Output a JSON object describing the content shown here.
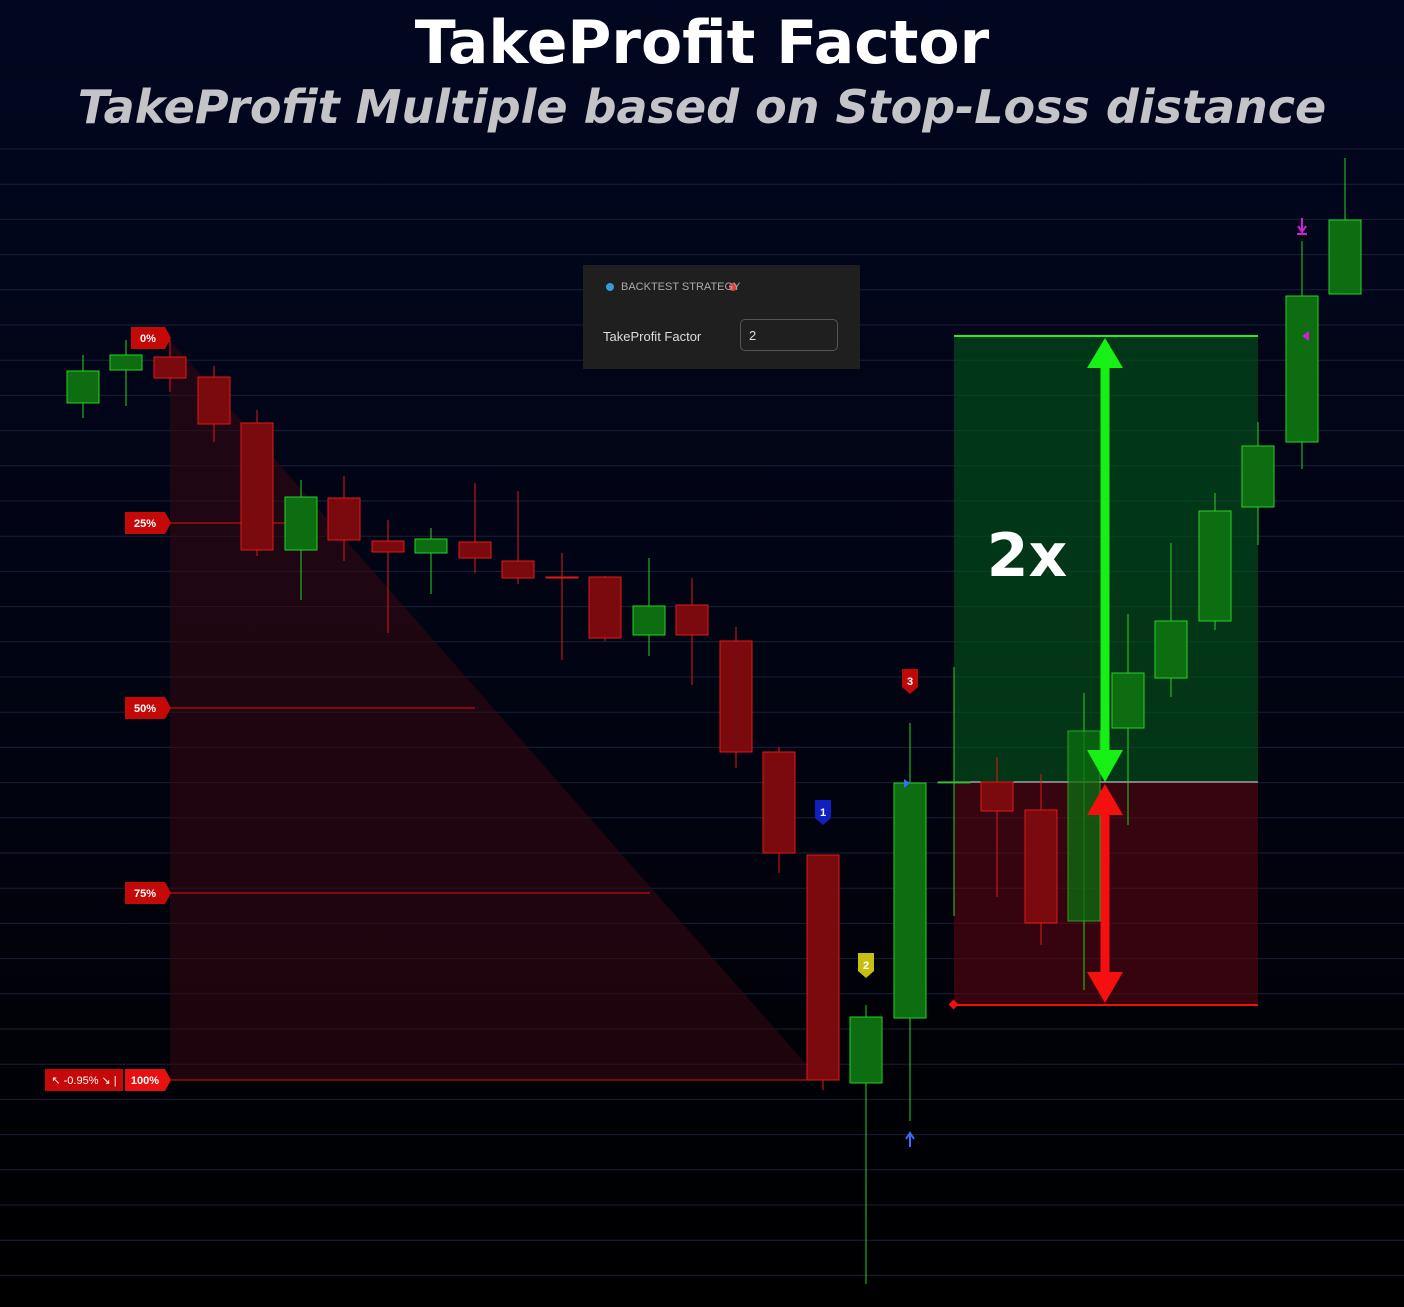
{
  "header": {
    "title": "TakeProfit Factor",
    "subtitle": "TakeProfit Multiple based on Stop-Loss distance"
  },
  "panel": {
    "heading": "BACKTEST STRATEGY",
    "field_label": "TakeProfit Factor",
    "field_value": "2"
  },
  "fib": {
    "levels": [
      "0%",
      "25%",
      "50%",
      "75%",
      "100%"
    ],
    "range": "↖ -0.95% ↘ |"
  },
  "markers": [
    "1",
    "2",
    "3"
  ],
  "annotation": "2x"
}
